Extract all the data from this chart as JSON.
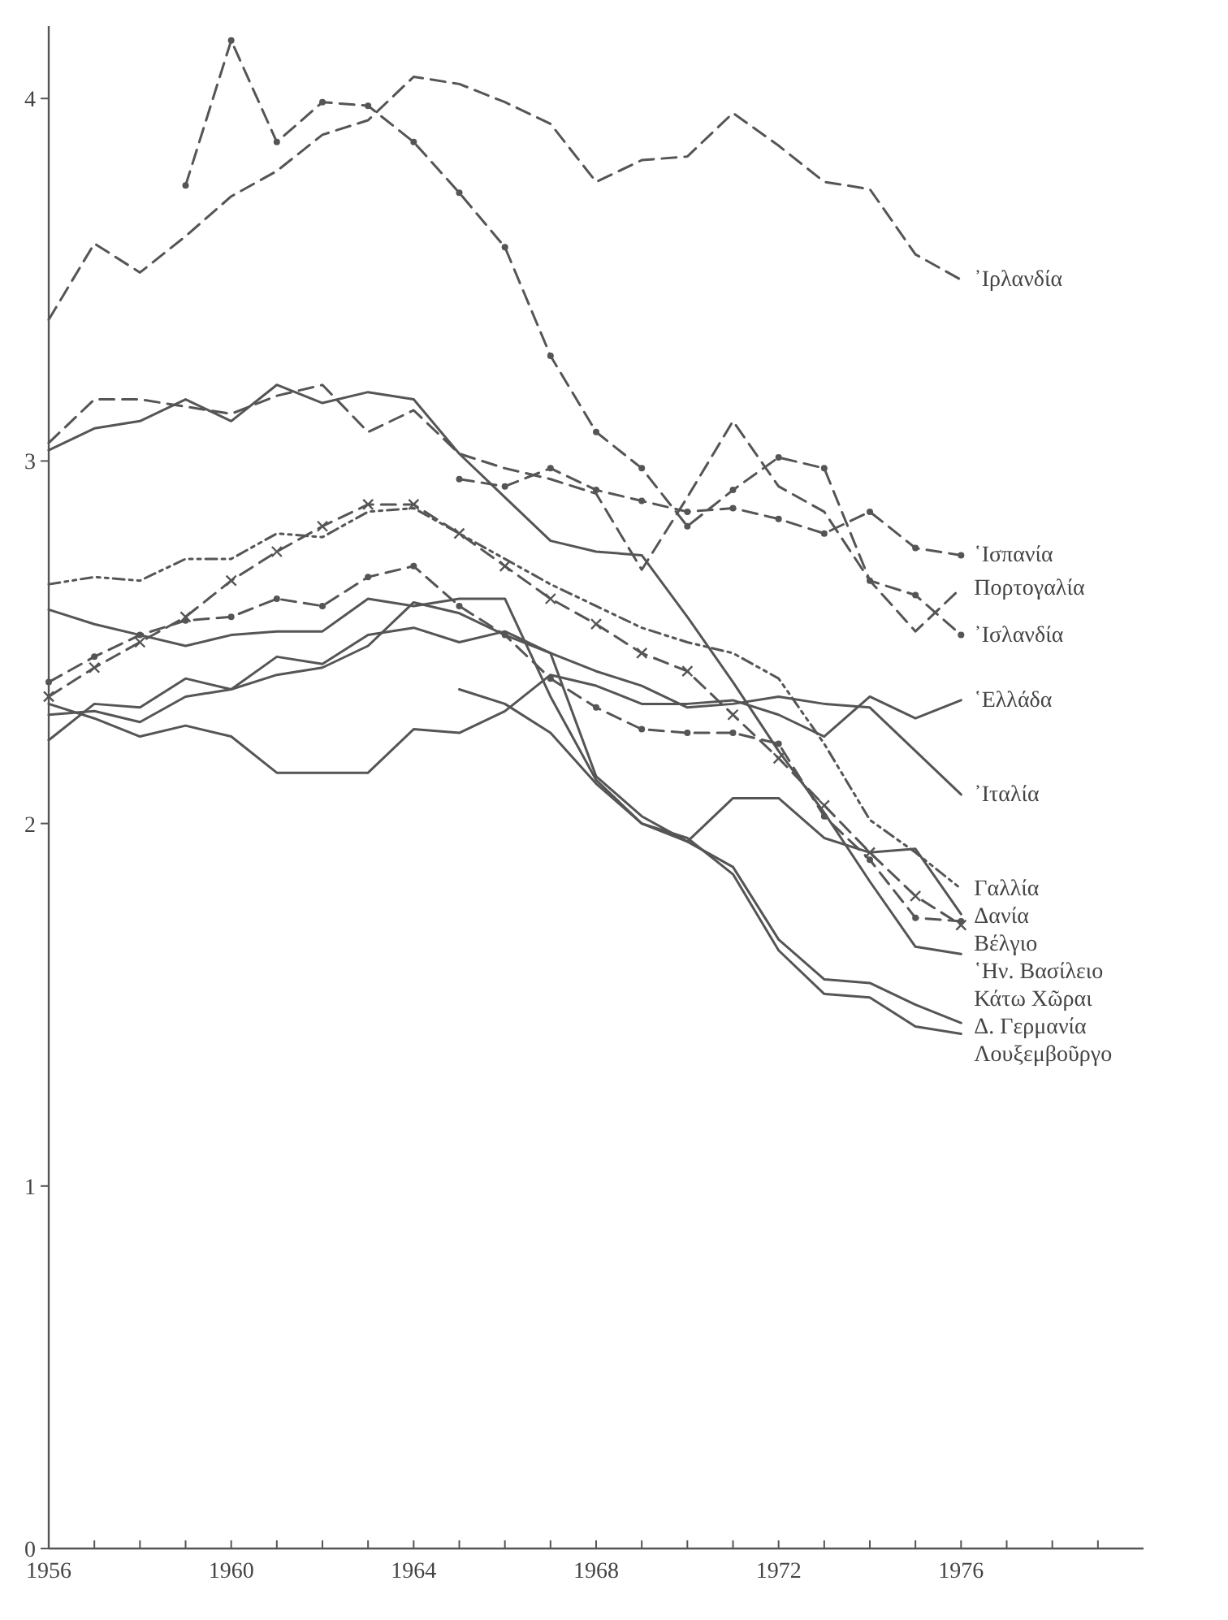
{
  "chart_data": {
    "type": "line",
    "x": [
      1956,
      1957,
      1958,
      1959,
      1960,
      1961,
      1962,
      1963,
      1964,
      1965,
      1966,
      1967,
      1968,
      1969,
      1970,
      1971,
      1972,
      1973,
      1974,
      1975,
      1976
    ],
    "xlim": [
      1956,
      1980
    ],
    "xticks": [
      1956,
      {
        "value": 1957,
        "label": null
      },
      {
        "value": 1958,
        "label": null
      },
      {
        "value": 1959,
        "label": null
      },
      1960,
      {
        "value": 1961,
        "label": null
      },
      {
        "value": 1962,
        "label": null
      },
      {
        "value": 1963,
        "label": null
      },
      1964,
      {
        "value": 1965,
        "label": null
      },
      {
        "value": 1966,
        "label": null
      },
      {
        "value": 1967,
        "label": null
      },
      1968,
      {
        "value": 1969,
        "label": null
      },
      {
        "value": 1970,
        "label": null
      },
      {
        "value": 1971,
        "label": null
      },
      1972,
      {
        "value": 1973,
        "label": null
      },
      {
        "value": 1974,
        "label": null
      },
      {
        "value": 1975,
        "label": null
      },
      1976,
      {
        "value": 1977,
        "label": null
      },
      {
        "value": 1978,
        "label": null
      },
      {
        "value": 1979,
        "label": null
      }
    ],
    "ylim": [
      0,
      4.2
    ],
    "yticks": [
      0,
      1,
      2,
      3,
      4
    ],
    "grid": false,
    "legend": false,
    "series": [
      {
        "name": "᾿Ιρλανδία",
        "color": "#555555",
        "line_style": "dashed",
        "marker": "none",
        "values": [
          3.39,
          3.6,
          3.52,
          3.62,
          3.73,
          3.8,
          3.9,
          3.94,
          4.06,
          4.04,
          3.99,
          3.93,
          3.77,
          3.83,
          3.84,
          3.96,
          3.87,
          3.77,
          3.75,
          3.57,
          3.5
        ]
      },
      {
        "name": "῾Ισπανία",
        "color": "#555555",
        "line_style": "dashed",
        "marker": "circle",
        "values": [
          null,
          null,
          null,
          null,
          null,
          null,
          null,
          null,
          null,
          2.95,
          2.93,
          2.98,
          2.92,
          2.89,
          2.86,
          2.87,
          2.84,
          2.8,
          2.86,
          2.76,
          2.74
        ]
      },
      {
        "name": "Πορτογαλία",
        "color": "#555555",
        "line_style": "dashed",
        "marker": "none",
        "values": [
          3.05,
          3.17,
          3.17,
          3.15,
          3.13,
          3.18,
          3.21,
          3.08,
          3.14,
          3.02,
          2.98,
          2.95,
          2.91,
          2.7,
          2.9,
          3.11,
          2.93,
          2.86,
          2.67,
          2.53,
          2.65
        ]
      },
      {
        "name": "᾿Ισλανδία",
        "color": "#555555",
        "line_style": "dashed",
        "marker": "circle",
        "values": [
          null,
          null,
          null,
          3.76,
          4.16,
          3.88,
          3.99,
          3.98,
          3.88,
          3.74,
          3.59,
          3.29,
          3.08,
          2.98,
          2.82,
          2.92,
          3.01,
          2.98,
          2.67,
          2.63,
          2.52
        ]
      },
      {
        "name": "῾Ελλάδα",
        "color": "#555555",
        "line_style": "solid",
        "marker": "none",
        "values": [
          2.33,
          2.29,
          2.24,
          2.27,
          2.24,
          2.14,
          2.14,
          2.14,
          2.26,
          2.25,
          2.31,
          2.41,
          2.38,
          2.33,
          2.33,
          2.34,
          2.3,
          2.24,
          2.35,
          2.29,
          2.34
        ]
      },
      {
        "name": "᾿Ιταλία",
        "color": "#555555",
        "line_style": "solid",
        "marker": "none",
        "values": [
          2.3,
          2.31,
          2.28,
          2.35,
          2.37,
          2.41,
          2.43,
          2.49,
          2.61,
          2.58,
          2.52,
          2.47,
          2.42,
          2.38,
          2.32,
          2.33,
          2.35,
          2.33,
          2.32,
          2.2,
          2.08
        ]
      },
      {
        "name": "Γαλλία",
        "color": "#555555",
        "line_style": "dotted",
        "marker": "none",
        "values": [
          2.66,
          2.68,
          2.67,
          2.73,
          2.73,
          2.8,
          2.79,
          2.86,
          2.87,
          2.8,
          2.73,
          2.66,
          2.6,
          2.54,
          2.5,
          2.47,
          2.4,
          2.22,
          2.01,
          1.92,
          1.82
        ]
      },
      {
        "name": "Δανία",
        "color": "#555555",
        "line_style": "solid",
        "marker": "none",
        "values": [
          2.59,
          2.55,
          2.52,
          2.49,
          2.52,
          2.53,
          2.53,
          2.62,
          2.6,
          2.62,
          2.62,
          2.35,
          2.12,
          2.0,
          1.95,
          2.07,
          2.07,
          1.96,
          1.92,
          1.93,
          1.75
        ]
      },
      {
        "name": "Βέλγιο",
        "color": "#555555",
        "line_style": "dashed",
        "marker": "circle",
        "values": [
          2.39,
          2.46,
          2.52,
          2.56,
          2.57,
          2.62,
          2.6,
          2.68,
          2.71,
          2.6,
          2.52,
          2.4,
          2.32,
          2.26,
          2.25,
          2.25,
          2.22,
          2.02,
          1.9,
          1.74,
          1.73
        ]
      },
      {
        "name": "῾Ην. Βασίλειο",
        "color": "#555555",
        "line_style": "dashed",
        "marker": "cross",
        "values": [
          2.35,
          2.43,
          2.5,
          2.57,
          2.67,
          2.75,
          2.82,
          2.88,
          2.88,
          2.8,
          2.71,
          2.62,
          2.55,
          2.47,
          2.42,
          2.3,
          2.18,
          2.05,
          1.92,
          1.8,
          1.72
        ]
      },
      {
        "name": "Κάτω Χῶραι",
        "color": "#555555",
        "line_style": "solid",
        "marker": "none",
        "values": [
          3.03,
          3.09,
          3.11,
          3.17,
          3.11,
          3.21,
          3.16,
          3.19,
          3.17,
          3.02,
          2.9,
          2.78,
          2.75,
          2.74,
          2.57,
          2.39,
          2.2,
          2.03,
          1.84,
          1.66,
          1.64
        ]
      },
      {
        "name": "Δ. Γερμανία",
        "color": "#555555",
        "line_style": "solid",
        "marker": "none",
        "values": [
          2.23,
          2.33,
          2.32,
          2.4,
          2.37,
          2.46,
          2.44,
          2.52,
          2.54,
          2.5,
          2.53,
          2.47,
          2.13,
          2.02,
          1.95,
          1.88,
          1.68,
          1.57,
          1.56,
          1.5,
          1.45
        ]
      },
      {
        "name": "Λουξεμβοῦργο",
        "color": "#555555",
        "line_style": "solid",
        "marker": "none",
        "values": [
          null,
          null,
          null,
          null,
          null,
          null,
          null,
          null,
          null,
          2.37,
          2.33,
          2.25,
          2.11,
          2.0,
          1.96,
          1.86,
          1.65,
          1.53,
          1.52,
          1.44,
          1.42
        ]
      }
    ]
  }
}
